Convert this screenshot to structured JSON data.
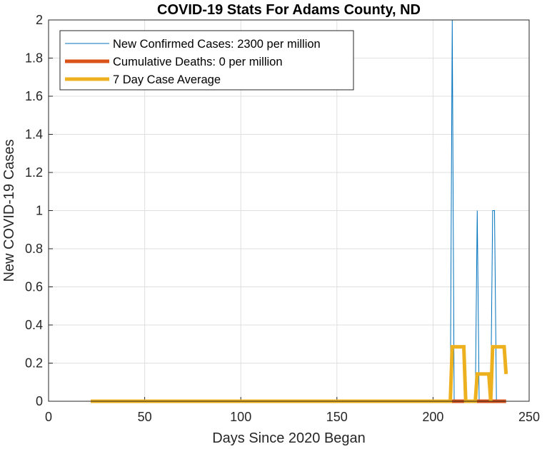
{
  "chart_data": {
    "type": "line",
    "title": "COVID-19 Stats For Adams County, ND",
    "xlabel": "Days Since 2020 Began",
    "ylabel": "New COVID-19 Cases",
    "xlim": [
      0,
      250
    ],
    "ylim": [
      0,
      2
    ],
    "xticks": [
      "0",
      "50",
      "100",
      "150",
      "200",
      "250"
    ],
    "yticks": [
      "0",
      "0.2",
      "0.4",
      "0.6",
      "0.8",
      "1",
      "1.2",
      "1.4",
      "1.6",
      "1.8",
      "2"
    ],
    "grid": true,
    "legend_position": "top-left",
    "series": [
      {
        "name": "New Confirmed Cases: 2300 per million",
        "color": "#0072BD",
        "x": [
          22,
          209,
          210,
          211,
          222,
          223,
          224,
          230,
          231,
          232,
          233,
          238
        ],
        "y": [
          0,
          0,
          2,
          0,
          0,
          1,
          0,
          0,
          1,
          1,
          0,
          0
        ]
      },
      {
        "name": "Cumulative Deaths: 0 per million",
        "color": "#D95319",
        "x": [
          22,
          238
        ],
        "y": [
          0,
          0
        ]
      },
      {
        "name": "7 Day Case Average",
        "color": "#EDB120",
        "x": [
          22,
          209,
          210,
          216,
          217,
          222,
          223,
          229,
          230,
          231,
          232,
          237,
          238
        ],
        "y": [
          0,
          0,
          0.2857,
          0.2857,
          0,
          0,
          0.1429,
          0.1429,
          0,
          0.2857,
          0.2857,
          0.2857,
          0.1429
        ]
      }
    ]
  }
}
